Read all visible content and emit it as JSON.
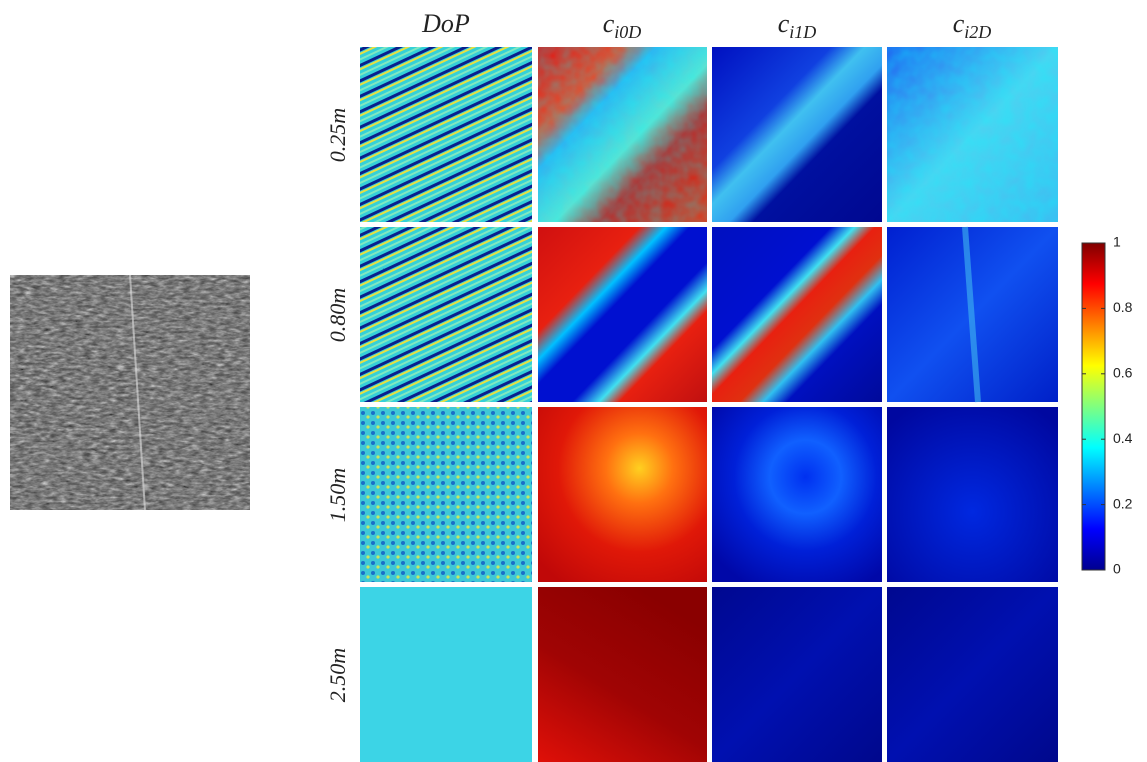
{
  "figure": {
    "columns": [
      "DoP",
      {
        "symbol": "c",
        "subscript": "i0D"
      },
      {
        "symbol": "c",
        "subscript": "i1D"
      },
      {
        "symbol": "c",
        "subscript": "i2D"
      }
    ],
    "rows": [
      "0.25m",
      "0.80m",
      "1.50m",
      "2.50m"
    ],
    "colorbar": {
      "lim": [
        0,
        1
      ],
      "ticks": [
        0,
        0.2,
        0.4,
        0.6,
        0.8,
        1
      ]
    }
  }
}
